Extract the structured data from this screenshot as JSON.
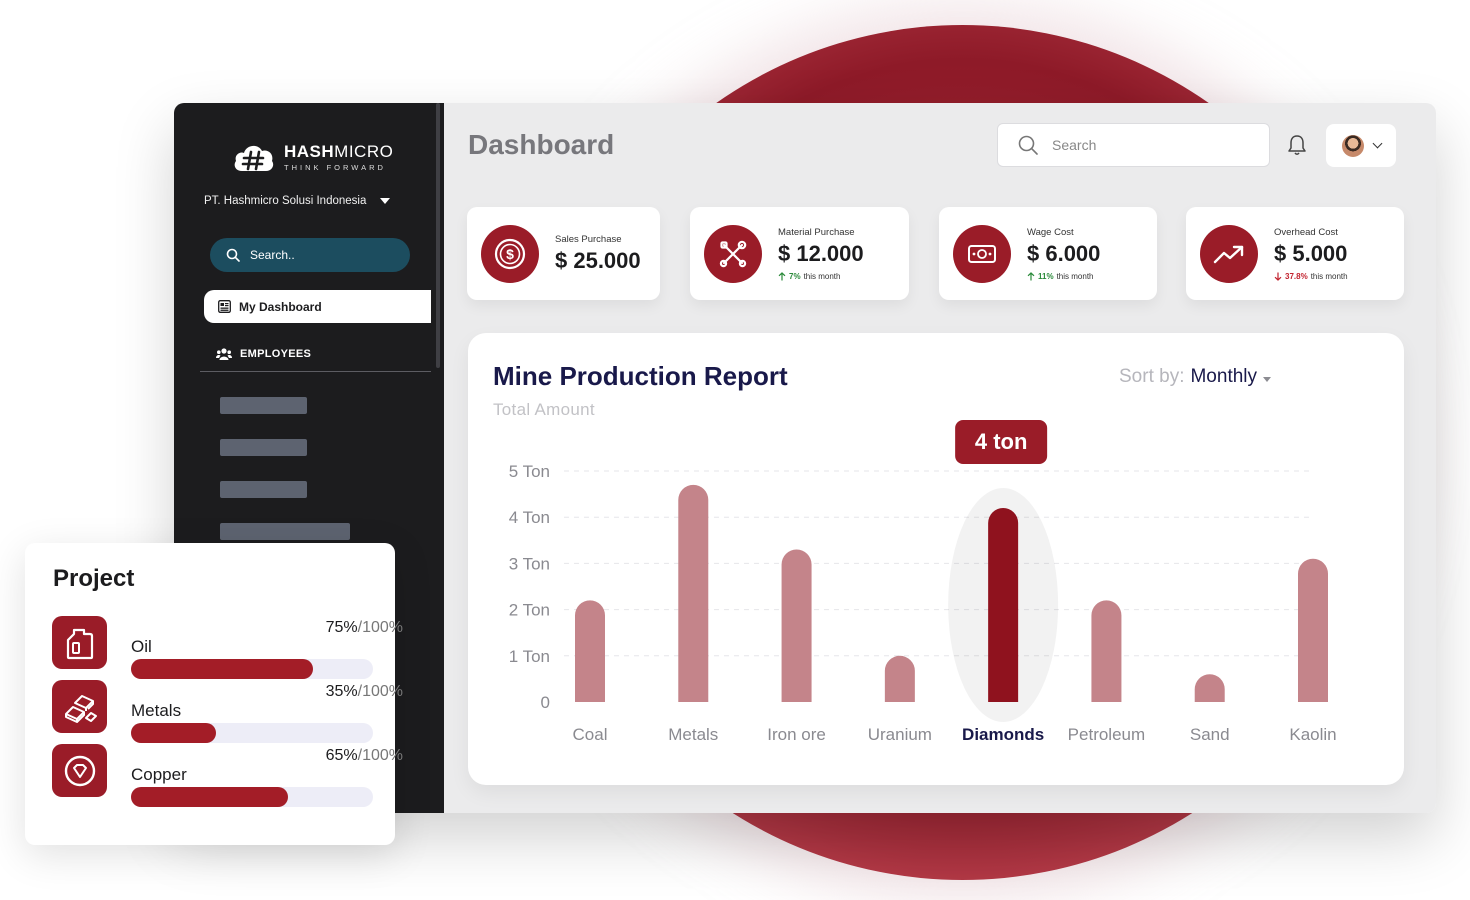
{
  "colors": {
    "brand": "#9a1c28",
    "bar": "#c4848a",
    "bar_highlight": "#8f121e",
    "sidebar_bg": "#1c1c1e",
    "search_bg": "#1c4d5f",
    "title_navy": "#19194a"
  },
  "sidebar": {
    "logo": {
      "name_bold": "HASH",
      "name_light": "MICRO",
      "tagline": "THINK FORWARD",
      "icon": "cloud-hash-icon"
    },
    "company": "PT. Hashmicro Solusi Indonesia",
    "search_placeholder": "Search..",
    "active_item": {
      "label": "My Dashboard",
      "icon": "dashboard-icon"
    },
    "section": {
      "label": "EMPLOYEES",
      "icon": "people-icon"
    }
  },
  "header": {
    "title": "Dashboard",
    "search_placeholder": "Search",
    "icons": [
      "search-icon",
      "bell-icon",
      "avatar",
      "chevron-down-icon"
    ]
  },
  "kpis": [
    {
      "label": "Sales Purchase",
      "value": "$ 25.000",
      "icon": "dollar-coin-icon"
    },
    {
      "label": "Material Purchase",
      "value": "$ 12.000",
      "trend_pct": "7%",
      "trend_text": "this month",
      "trend_dir": "up",
      "icon": "tools-icon"
    },
    {
      "label": "Wage Cost",
      "value": "$ 6.000",
      "trend_pct": "11%",
      "trend_text": "this month",
      "trend_dir": "up",
      "icon": "cash-icon"
    },
    {
      "label": "Overhead Cost",
      "value": "$ 5.000",
      "trend_pct": "37.8%",
      "trend_text": "this month",
      "trend_dir": "down",
      "icon": "trend-up-icon"
    }
  ],
  "report": {
    "title": "Mine Production Report",
    "subtitle": "Total Amount",
    "sort_label": "Sort by:",
    "sort_value": "Monthly",
    "tooltip": "4 ton"
  },
  "chart_data": {
    "type": "bar",
    "categories": [
      "Coal",
      "Metals",
      "Iron ore",
      "Uranium",
      "Diamonds",
      "Petroleum",
      "Sand",
      "Kaolin"
    ],
    "values": [
      2.2,
      4.7,
      3.3,
      1.0,
      4.2,
      2.2,
      0.6,
      3.1
    ],
    "highlight_index": 4,
    "y_ticks": [
      "0",
      "1 Ton",
      "2 Ton",
      "3 Ton",
      "4 Ton",
      "5 Ton"
    ],
    "ylim": [
      0,
      5
    ],
    "grid": true
  },
  "project": {
    "title": "Project",
    "items": [
      {
        "name": "Oil",
        "pct_text": "75%",
        "total_text": "/100%",
        "fraction": 0.75,
        "icon": "oil-can-icon"
      },
      {
        "name": "Metals",
        "pct_text": "35%",
        "total_text": "/100%",
        "fraction": 0.35,
        "icon": "metal-bars-icon"
      },
      {
        "name": "Copper",
        "pct_text": "65%",
        "total_text": "/100%",
        "fraction": 0.65,
        "icon": "gem-icon"
      }
    ]
  }
}
